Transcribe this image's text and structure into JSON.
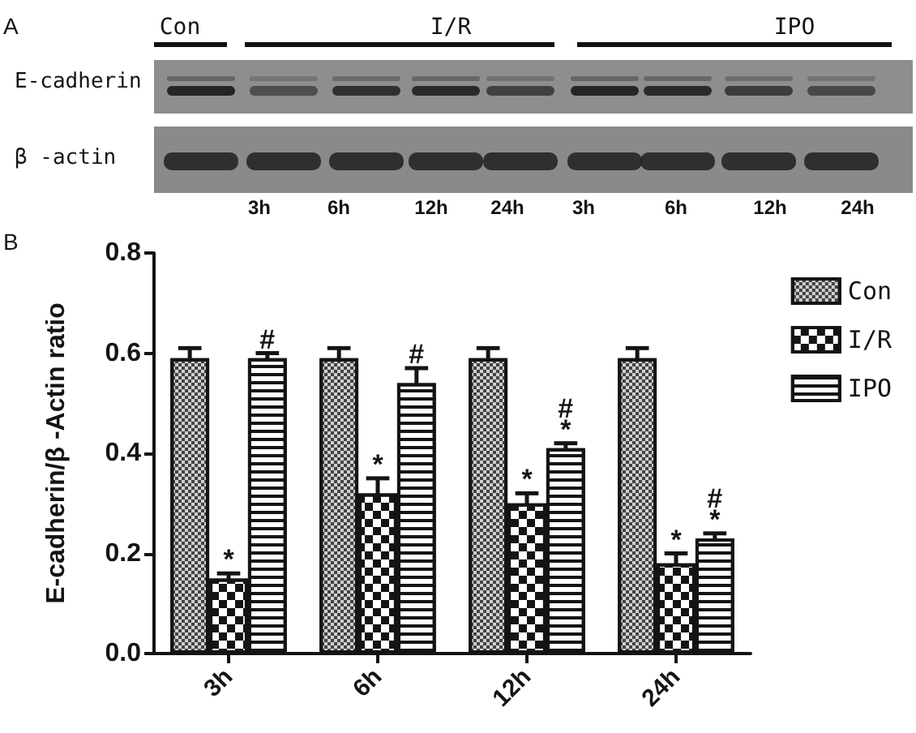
{
  "chart_data": {
    "type": "bar",
    "ylabel": "E-cadherin/β -Actin ratio",
    "categories": [
      "3h",
      "6h",
      "12h",
      "24h"
    ],
    "series": [
      {
        "name": "Con",
        "color": "#d0d0d0",
        "values": [
          0.59,
          0.59,
          0.59,
          0.59
        ],
        "errors": [
          0.02,
          0.02,
          0.02,
          0.02
        ]
      },
      {
        "name": "I/R",
        "color": "#ffffff",
        "values": [
          0.15,
          0.32,
          0.3,
          0.18
        ],
        "errors": [
          0.01,
          0.03,
          0.02,
          0.02
        ],
        "value_labels": [
          "*",
          "*",
          "*",
          "*"
        ]
      },
      {
        "name": "IPO",
        "color": "#ffffff",
        "values": [
          0.59,
          0.54,
          0.41,
          0.23
        ],
        "errors": [
          0.01,
          0.03,
          0.01,
          0.01
        ],
        "value_labels": [
          "#",
          "#",
          "#\n*",
          "#\n*"
        ]
      }
    ],
    "ylim": [
      0,
      0.8
    ],
    "yticks": [
      {
        "value": 0,
        "label": "0.0"
      },
      0.2,
      0.4,
      0.6,
      0.8
    ],
    "legend": "top right",
    "annotations": [
      "A",
      "Con",
      "I/R",
      "IPO",
      "E-cadherin",
      "β -actin",
      "3h",
      "6h",
      "12h",
      "24h",
      "3h",
      "6h",
      "12h",
      "24h",
      "B"
    ]
  }
}
